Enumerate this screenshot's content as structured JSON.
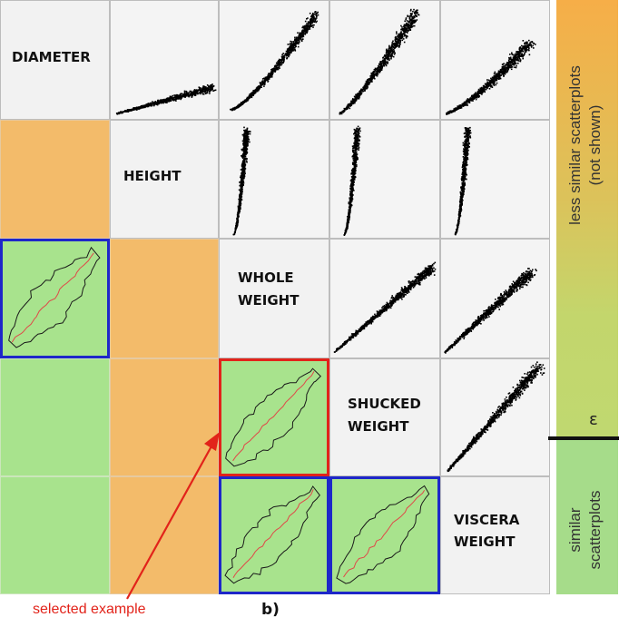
{
  "matrix": {
    "variables": [
      "DIAMETER",
      "HEIGHT",
      "WHOLE WEIGHT",
      "SHUCKED WEIGHT",
      "VISCERA WEIGHT"
    ],
    "diagonal_labels": [
      [
        "DIAMETER"
      ],
      [
        "HEIGHT"
      ],
      [
        "WHOLE",
        "WEIGHT"
      ],
      [
        "SHUCKED",
        "WEIGHT"
      ],
      [
        "VISCERA",
        "WEIGHT"
      ]
    ]
  },
  "legend": {
    "top_label_line1": "less similar scatterplots",
    "top_label_line2": "(not shown)",
    "threshold_symbol": "ε",
    "bottom_label_line1": "similar",
    "bottom_label_line2": "scatterplots",
    "colors": {
      "top": "#f6b04a",
      "middle": "#c5d56a",
      "bottom": "#a3dc86"
    }
  },
  "captions": {
    "panel": "b)",
    "selected": "selected example"
  },
  "colors": {
    "highlight_blue": "#1e27c9",
    "highlight_red": "#e2231a",
    "similar_cell": "#a8e38d",
    "less_similar_cell": "#f3bb6a"
  }
}
